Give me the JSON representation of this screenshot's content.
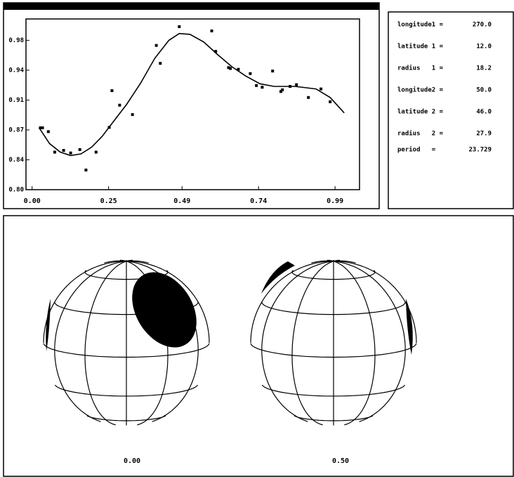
{
  "chart_data": {
    "type": "scatter",
    "xlim": [
      -0.02,
      1.07
    ],
    "ylim": [
      0.8,
      1.0
    ],
    "xticks": [
      {
        "value": 0,
        "label": "0.00"
      },
      0.25,
      0.49,
      0.74,
      0.99
    ],
    "yticks": [
      {
        "value": 0.8,
        "label": "0.80"
      },
      {
        "value": 0.835,
        "label": "0.84"
      },
      0.87,
      {
        "value": 0.905,
        "label": "0.91"
      },
      0.94,
      {
        "value": 0.975,
        "label": "0.98"
      }
    ],
    "color": "#000000",
    "points": {
      "x": [
        0.027,
        0.034,
        0.053,
        0.074,
        0.103,
        0.126,
        0.156,
        0.176,
        0.209,
        0.252,
        0.261,
        0.286,
        0.328,
        0.406,
        0.419,
        0.481,
        0.587,
        0.6,
        0.642,
        0.648,
        0.674,
        0.713,
        0.733,
        0.752,
        0.786,
        0.813,
        0.818,
        0.843,
        0.864,
        0.903,
        0.944,
        0.974
      ],
      "values": [
        0.8725,
        0.8725,
        0.868,
        0.844,
        0.846,
        0.843,
        0.847,
        0.823,
        0.844,
        0.873,
        0.916,
        0.899,
        0.888,
        0.969,
        0.948,
        0.991,
        0.986,
        0.962,
        0.943,
        0.942,
        0.941,
        0.936,
        0.922,
        0.92,
        0.939,
        0.915,
        0.917,
        0.921,
        0.923,
        0.908,
        0.918,
        0.903
      ]
    },
    "fit": {
      "x": [
        0.023,
        0.057,
        0.092,
        0.126,
        0.16,
        0.195,
        0.229,
        0.264,
        0.309,
        0.355,
        0.401,
        0.447,
        0.481,
        0.516,
        0.561,
        0.607,
        0.653,
        0.699,
        0.745,
        0.791,
        0.859,
        0.928,
        0.974,
        1.02
      ],
      "values": [
        0.8725,
        0.854,
        0.844,
        0.84,
        0.842,
        0.85,
        0.8625,
        0.879,
        0.9,
        0.925,
        0.954,
        0.975,
        0.983,
        0.982,
        0.973,
        0.958,
        0.944,
        0.933,
        0.924,
        0.921,
        0.921,
        0.918,
        0.908,
        0.89
      ]
    }
  },
  "parameters": [
    {
      "label": "longitude1 =",
      "value": "270.0"
    },
    {
      "label": "latitude 1 =",
      "value": "12.0"
    },
    {
      "label": "radius   1 =",
      "value": "18.2"
    },
    {
      "label": "longitude2 =",
      "value": "50.0"
    },
    {
      "label": "latitude 2 =",
      "value": "46.0"
    },
    {
      "label": "radius   2 =",
      "value": "27.9"
    },
    {
      "label": "period   =",
      "value": "23.729"
    }
  ],
  "phases": [
    "0.00",
    "0.50"
  ]
}
